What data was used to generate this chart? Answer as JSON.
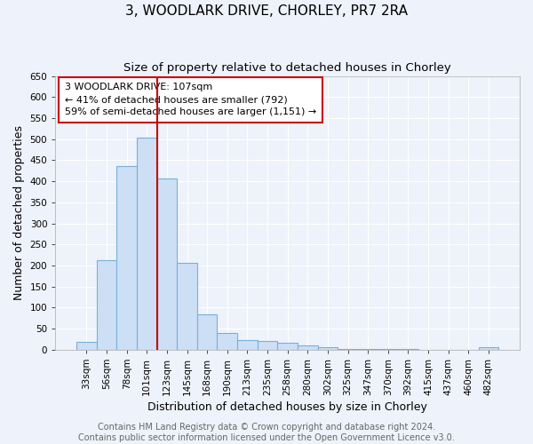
{
  "title": "3, WOODLARK DRIVE, CHORLEY, PR7 2RA",
  "subtitle": "Size of property relative to detached houses in Chorley",
  "xlabel": "Distribution of detached houses by size in Chorley",
  "ylabel": "Number of detached properties",
  "categories": [
    "33sqm",
    "56sqm",
    "78sqm",
    "101sqm",
    "123sqm",
    "145sqm",
    "168sqm",
    "190sqm",
    "213sqm",
    "235sqm",
    "258sqm",
    "280sqm",
    "302sqm",
    "325sqm",
    "347sqm",
    "370sqm",
    "392sqm",
    "415sqm",
    "437sqm",
    "460sqm",
    "482sqm"
  ],
  "values": [
    18,
    213,
    437,
    503,
    407,
    206,
    85,
    40,
    22,
    20,
    17,
    11,
    6,
    2,
    2,
    1,
    1,
    0,
    0,
    0,
    6
  ],
  "bar_color": "#ccdff5",
  "bar_edge_color": "#7ab0d8",
  "vline_x_index": 3,
  "vline_color": "#cc0000",
  "annotation_text": "3 WOODLARK DRIVE: 107sqm\n← 41% of detached houses are smaller (792)\n59% of semi-detached houses are larger (1,151) →",
  "annotation_box_color": "#ffffff",
  "annotation_box_edge": "#cc0000",
  "ylim": [
    0,
    650
  ],
  "yticks": [
    0,
    50,
    100,
    150,
    200,
    250,
    300,
    350,
    400,
    450,
    500,
    550,
    600,
    650
  ],
  "footer_text": "Contains HM Land Registry data © Crown copyright and database right 2024.\nContains public sector information licensed under the Open Government Licence v3.0.",
  "background_color": "#eef2fa",
  "grid_color": "#ffffff",
  "title_fontsize": 11,
  "subtitle_fontsize": 9.5,
  "axis_label_fontsize": 9,
  "tick_fontsize": 7.5,
  "annotation_fontsize": 8,
  "footer_fontsize": 7
}
